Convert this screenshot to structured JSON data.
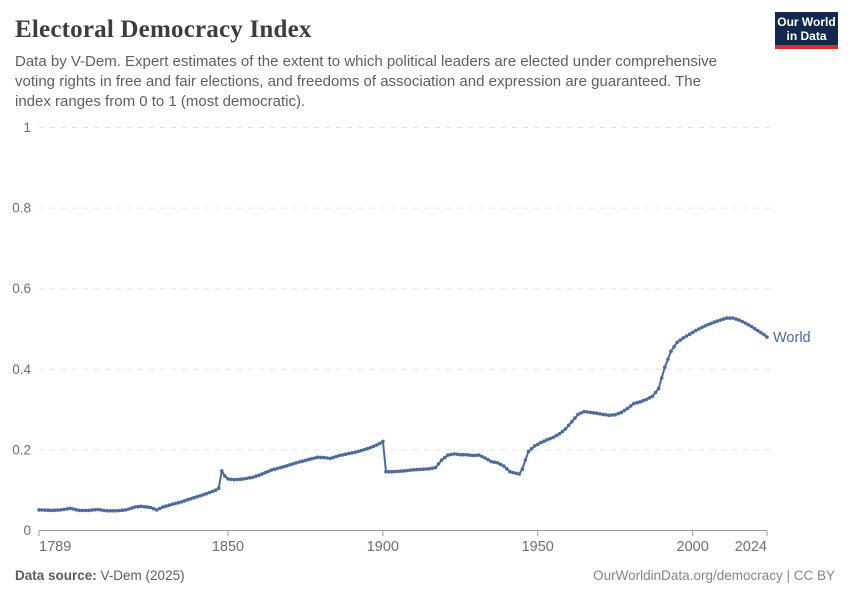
{
  "header": {
    "title": "Electoral Democracy Index",
    "subtitle": "Data by V-Dem. Expert estimates of the extent to which political leaders are elected under comprehensive voting rights in free and fair elections, and freedoms of association and expression are guaranteed. The index ranges from 0 to 1 (most democratic).",
    "logo": {
      "line1": "Our World",
      "line2": "in Data",
      "background_color": "#12294d",
      "stripe_color": "#d93025",
      "text_color": "#ffffff"
    }
  },
  "chart_data": {
    "type": "line",
    "title": "Electoral Democracy Index",
    "xlabel": "",
    "ylabel": "",
    "xlim": [
      1789,
      2024
    ],
    "ylim": [
      0,
      1
    ],
    "x_ticks": [
      1789,
      1850,
      1900,
      1950,
      2000,
      2024
    ],
    "y_ticks": [
      0,
      0.2,
      0.4,
      0.6,
      0.8,
      1
    ],
    "grid": "horizontal-dashed",
    "grid_color": "#e3e3e3",
    "axis_color": "#9b9b9b",
    "tick_label_color": "#6e6e6e",
    "legend_position": "end-of-line",
    "series": [
      {
        "name": "World",
        "color": "#4c6a9c",
        "marker": "dot-per-year",
        "points": [
          [
            1789,
            0.051
          ],
          [
            1793,
            0.05
          ],
          [
            1796,
            0.051
          ],
          [
            1799,
            0.055
          ],
          [
            1802,
            0.05
          ],
          [
            1805,
            0.05
          ],
          [
            1808,
            0.052
          ],
          [
            1811,
            0.049
          ],
          [
            1814,
            0.049
          ],
          [
            1817,
            0.051
          ],
          [
            1820,
            0.058
          ],
          [
            1822,
            0.06
          ],
          [
            1825,
            0.057
          ],
          [
            1827,
            0.051
          ],
          [
            1829,
            0.058
          ],
          [
            1832,
            0.065
          ],
          [
            1835,
            0.071
          ],
          [
            1838,
            0.079
          ],
          [
            1841,
            0.086
          ],
          [
            1844,
            0.094
          ],
          [
            1846,
            0.1
          ],
          [
            1847,
            0.105
          ],
          [
            1848,
            0.148
          ],
          [
            1849,
            0.135
          ],
          [
            1850,
            0.128
          ],
          [
            1852,
            0.126
          ],
          [
            1855,
            0.128
          ],
          [
            1858,
            0.132
          ],
          [
            1861,
            0.14
          ],
          [
            1864,
            0.15
          ],
          [
            1867,
            0.156
          ],
          [
            1870,
            0.163
          ],
          [
            1873,
            0.17
          ],
          [
            1876,
            0.176
          ],
          [
            1879,
            0.182
          ],
          [
            1881,
            0.181
          ],
          [
            1883,
            0.179
          ],
          [
            1886,
            0.186
          ],
          [
            1889,
            0.191
          ],
          [
            1892,
            0.196
          ],
          [
            1895,
            0.203
          ],
          [
            1898,
            0.212
          ],
          [
            1900,
            0.221
          ],
          [
            1901,
            0.146
          ],
          [
            1903,
            0.146
          ],
          [
            1905,
            0.147
          ],
          [
            1907,
            0.148
          ],
          [
            1909,
            0.15
          ],
          [
            1911,
            0.151
          ],
          [
            1913,
            0.152
          ],
          [
            1915,
            0.153
          ],
          [
            1917,
            0.156
          ],
          [
            1919,
            0.175
          ],
          [
            1921,
            0.187
          ],
          [
            1923,
            0.19
          ],
          [
            1925,
            0.188
          ],
          [
            1927,
            0.188
          ],
          [
            1929,
            0.186
          ],
          [
            1931,
            0.187
          ],
          [
            1933,
            0.18
          ],
          [
            1935,
            0.171
          ],
          [
            1937,
            0.168
          ],
          [
            1939,
            0.16
          ],
          [
            1941,
            0.146
          ],
          [
            1943,
            0.142
          ],
          [
            1944,
            0.14
          ],
          [
            1945,
            0.152
          ],
          [
            1946,
            0.175
          ],
          [
            1947,
            0.196
          ],
          [
            1949,
            0.21
          ],
          [
            1951,
            0.218
          ],
          [
            1953,
            0.225
          ],
          [
            1955,
            0.231
          ],
          [
            1957,
            0.24
          ],
          [
            1959,
            0.252
          ],
          [
            1961,
            0.27
          ],
          [
            1963,
            0.288
          ],
          [
            1965,
            0.295
          ],
          [
            1967,
            0.293
          ],
          [
            1969,
            0.291
          ],
          [
            1971,
            0.288
          ],
          [
            1973,
            0.286
          ],
          [
            1975,
            0.287
          ],
          [
            1977,
            0.293
          ],
          [
            1979,
            0.303
          ],
          [
            1981,
            0.315
          ],
          [
            1983,
            0.319
          ],
          [
            1985,
            0.325
          ],
          [
            1987,
            0.333
          ],
          [
            1989,
            0.352
          ],
          [
            1991,
            0.405
          ],
          [
            1993,
            0.445
          ],
          [
            1995,
            0.467
          ],
          [
            1997,
            0.478
          ],
          [
            1999,
            0.487
          ],
          [
            2001,
            0.496
          ],
          [
            2003,
            0.504
          ],
          [
            2005,
            0.511
          ],
          [
            2007,
            0.517
          ],
          [
            2009,
            0.522
          ],
          [
            2011,
            0.527
          ],
          [
            2013,
            0.527
          ],
          [
            2015,
            0.522
          ],
          [
            2017,
            0.515
          ],
          [
            2019,
            0.506
          ],
          [
            2021,
            0.496
          ],
          [
            2023,
            0.486
          ],
          [
            2024,
            0.48
          ]
        ]
      }
    ]
  },
  "footer": {
    "source_label": "Data source:",
    "source_value": "V-Dem (2025)",
    "right_text": "OurWorldinData.org/democracy | CC BY"
  }
}
